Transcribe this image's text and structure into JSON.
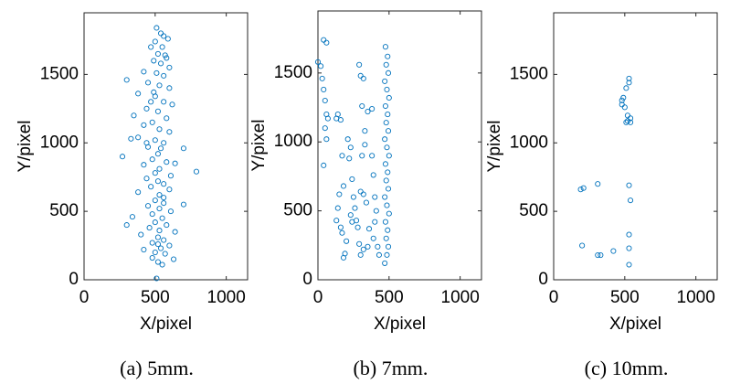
{
  "chart_data": [
    {
      "type": "scatter",
      "caption": "(a)  5mm.",
      "xlabel": "X/pixel",
      "ylabel": "Y/pixel",
      "color": "#0072bd",
      "xlim": [
        0,
        1150
      ],
      "ylim": [
        0,
        1950
      ],
      "xticks": [
        0,
        500,
        1000
      ],
      "yticks": [
        0,
        500,
        1000,
        1500
      ],
      "series": [
        {
          "x": [
            510,
            540,
            560,
            590,
            500,
            470,
            550,
            520,
            580,
            490,
            540,
            600,
            420,
            510,
            560,
            300,
            450,
            530,
            600,
            380,
            500,
            470,
            560,
            620,
            440,
            520,
            350,
            580,
            480,
            420,
            530,
            600,
            380,
            500,
            560,
            330,
            450,
            540,
            700,
            520,
            270,
            480,
            580,
            640,
            420,
            530,
            500,
            790,
            610,
            440,
            520,
            560,
            470,
            600,
            380,
            530,
            500,
            560,
            700,
            450,
            530,
            610,
            480,
            340,
            550,
            500,
            580,
            300,
            460,
            530,
            640,
            400,
            520,
            560,
            480,
            600,
            540,
            420,
            500,
            570,
            480,
            630,
            520,
            550,
            510,
            440,
            570,
            490,
            560,
            520
          ],
          "y": [
            1840,
            1800,
            1780,
            1760,
            1740,
            1700,
            1700,
            1650,
            1620,
            1600,
            1580,
            1550,
            1520,
            1510,
            1490,
            1460,
            1440,
            1420,
            1400,
            1360,
            1340,
            1300,
            1300,
            1280,
            1250,
            1230,
            1200,
            1180,
            1150,
            1130,
            1100,
            1080,
            1040,
            1020,
            1000,
            1030,
            970,
            960,
            960,
            920,
            900,
            880,
            860,
            850,
            840,
            810,
            780,
            790,
            760,
            740,
            720,
            700,
            680,
            660,
            640,
            620,
            580,
            560,
            550,
            540,
            520,
            500,
            480,
            460,
            450,
            420,
            400,
            400,
            380,
            360,
            350,
            330,
            310,
            290,
            270,
            250,
            230,
            220,
            200,
            190,
            160,
            150,
            130,
            110,
            10,
            1000,
            1640,
            1370,
            600,
            260
          ]
        }
      ]
    },
    {
      "type": "scatter",
      "caption": "(b)  7mm.",
      "xlabel": "X/pixel",
      "ylabel": "Y/pixel",
      "color": "#0072bd",
      "xlim": [
        0,
        1150
      ],
      "ylim": [
        0,
        1950
      ],
      "xticks": [
        0,
        500,
        1000
      ],
      "yticks": [
        0,
        500,
        1000,
        1500
      ],
      "series": [
        {
          "x": [
            0,
            20,
            40,
            60,
            30,
            40,
            50,
            60,
            70,
            50,
            60,
            40,
            130,
            140,
            160,
            170,
            180,
            150,
            140,
            130,
            160,
            170,
            200,
            180,
            210,
            230,
            220,
            240,
            250,
            260,
            270,
            280,
            290,
            300,
            320,
            310,
            330,
            330,
            310,
            300,
            320,
            340,
            290,
            300,
            320,
            350,
            380,
            380,
            390,
            400,
            410,
            400,
            360,
            390,
            350,
            420,
            430,
            240,
            230,
            190,
            470,
            485,
            495,
            480,
            490,
            475,
            500,
            485,
            470,
            495,
            480,
            490,
            475,
            500,
            485,
            470,
            495,
            480,
            490,
            475,
            500,
            485,
            470,
            495,
            480,
            490,
            475
          ],
          "y": [
            1580,
            1550,
            1740,
            1720,
            1460,
            1380,
            1300,
            1200,
            1170,
            1100,
            1020,
            830,
            1170,
            1200,
            1160,
            900,
            680,
            620,
            520,
            430,
            380,
            340,
            280,
            160,
            1020,
            960,
            880,
            730,
            600,
            520,
            430,
            380,
            1560,
            1480,
            1460,
            1260,
            1080,
            980,
            900,
            640,
            620,
            560,
            260,
            180,
            220,
            1220,
            1240,
            900,
            760,
            600,
            500,
            420,
            370,
            300,
            240,
            240,
            180,
            420,
            470,
            190,
            120,
            180,
            240,
            300,
            360,
            420,
            480,
            540,
            600,
            660,
            720,
            780,
            840,
            900,
            960,
            1020,
            1080,
            1140,
            1200,
            1260,
            1320,
            1380,
            1440,
            1500,
            1560,
            1620,
            1690
          ]
        }
      ]
    },
    {
      "type": "scatter",
      "caption": "(c)  10mm.",
      "xlabel": "X/pixel",
      "ylabel": "Y/pixel",
      "color": "#0072bd",
      "xlim": [
        0,
        1150
      ],
      "ylim": [
        0,
        1950
      ],
      "xticks": [
        0,
        500,
        1000
      ],
      "yticks": [
        0,
        500,
        1000,
        1500
      ],
      "series": [
        {
          "x": [
            530,
            530,
            510,
            490,
            480,
            480,
            500,
            520,
            540,
            520,
            510,
            540,
            190,
            210,
            310,
            530,
            540,
            530,
            200,
            530,
            420,
            310,
            330,
            530
          ],
          "y": [
            1470,
            1440,
            1400,
            1330,
            1310,
            1280,
            1260,
            1200,
            1180,
            1160,
            1150,
            1150,
            660,
            670,
            700,
            690,
            580,
            330,
            250,
            230,
            210,
            180,
            180,
            110
          ]
        }
      ]
    }
  ]
}
